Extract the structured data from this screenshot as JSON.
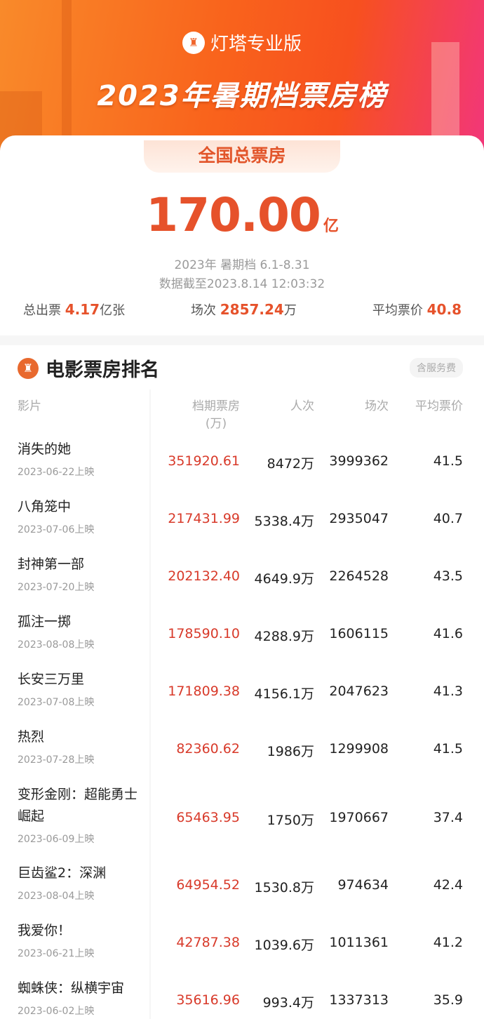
{
  "header": {
    "brand": "灯塔专业版",
    "title": "2023年暑期档票房榜"
  },
  "summary": {
    "tab": "全国总票房",
    "total": "170.00",
    "total_unit": "亿",
    "period": "2023年 暑期档 6.1-8.31",
    "updated": "数据截至2023.8.14 12:03:32",
    "tickets_label": "总出票",
    "tickets_value": "4.17",
    "tickets_unit": "亿张",
    "shows_label": "场次",
    "shows_value": "2857.24",
    "shows_unit": "万",
    "price_label": "平均票价",
    "price_value": "40.8"
  },
  "ranking": {
    "title": "电影票房排名",
    "fee_badge": "含服务费",
    "columns": {
      "film": "影片",
      "box": "档期票房",
      "box_unit": "(万)",
      "people": "人次",
      "shows": "场次",
      "price": "平均票价"
    },
    "rows": [
      {
        "name": "消失的她",
        "date": "2023-06-22上映",
        "box": "351920.61",
        "people": "8472万",
        "shows": "3999362",
        "price": "41.5"
      },
      {
        "name": "八角笼中",
        "date": "2023-07-06上映",
        "box": "217431.99",
        "people": "5338.4万",
        "shows": "2935047",
        "price": "40.7"
      },
      {
        "name": "封神第一部",
        "date": "2023-07-20上映",
        "box": "202132.40",
        "people": "4649.9万",
        "shows": "2264528",
        "price": "43.5"
      },
      {
        "name": "孤注一掷",
        "date": "2023-08-08上映",
        "box": "178590.10",
        "people": "4288.9万",
        "shows": "1606115",
        "price": "41.6"
      },
      {
        "name": "长安三万里",
        "date": "2023-07-08上映",
        "box": "171809.38",
        "people": "4156.1万",
        "shows": "2047623",
        "price": "41.3"
      },
      {
        "name": "热烈",
        "date": "2023-07-28上映",
        "box": "82360.62",
        "people": "1986万",
        "shows": "1299908",
        "price": "41.5"
      },
      {
        "name": "变形金刚：超能勇士崛起",
        "date": "2023-06-09上映",
        "box": "65463.95",
        "people": "1750万",
        "shows": "1970667",
        "price": "37.4"
      },
      {
        "name": "巨齿鲨2：深渊",
        "date": "2023-08-04上映",
        "box": "64954.52",
        "people": "1530.8万",
        "shows": "974634",
        "price": "42.4"
      },
      {
        "name": "我爱你！",
        "date": "2023-06-21上映",
        "box": "42787.38",
        "people": "1039.6万",
        "shows": "1011361",
        "price": "41.2"
      },
      {
        "name": "蜘蛛侠：纵横宇宙",
        "date": "2023-06-02上映",
        "box": "35616.96",
        "people": "993.4万",
        "shows": "1337313",
        "price": "35.9"
      }
    ]
  },
  "colors": {
    "accent": "#e6522b",
    "box_office": "#d83a2a"
  }
}
